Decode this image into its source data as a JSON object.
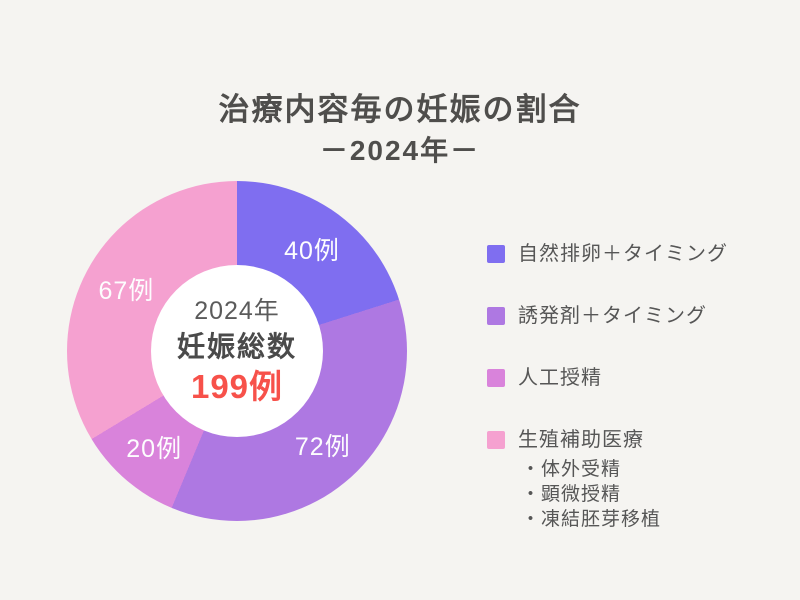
{
  "page": {
    "background_color": "#f5f4f1",
    "title": "治療内容毎の妊娠の割合",
    "subtitle": "－2024年－"
  },
  "center_label": {
    "year": "2024年",
    "caption": "妊娠総数",
    "total": "199例",
    "total_color": "#f7514a"
  },
  "chart_data": {
    "type": "pie",
    "donut": true,
    "title": "治療内容毎の妊娠の割合 －2024年－",
    "total_label": "妊娠総数",
    "total_value": 199,
    "unit": "例",
    "start_angle_deg": 0,
    "direction": "clockwise",
    "legend_position": "right",
    "inner_circle_color": "#ffffff",
    "segments": [
      {
        "label": "自然排卵＋タイミング",
        "value": 40,
        "value_label": "40例",
        "color": "#7f6ef0"
      },
      {
        "label": "誘発剤＋タイミング",
        "value": 72,
        "value_label": "72例",
        "color": "#ae78e2"
      },
      {
        "label": "人工授精",
        "value": 20,
        "value_label": "20例",
        "color": "#d983db"
      },
      {
        "label": "生殖補助医療",
        "value": 67,
        "value_label": "67例",
        "color": "#f5a1d0",
        "sub_items": [
          "・体外受精",
          "・顕微授精",
          "・凍結胚芽移植"
        ]
      }
    ]
  }
}
